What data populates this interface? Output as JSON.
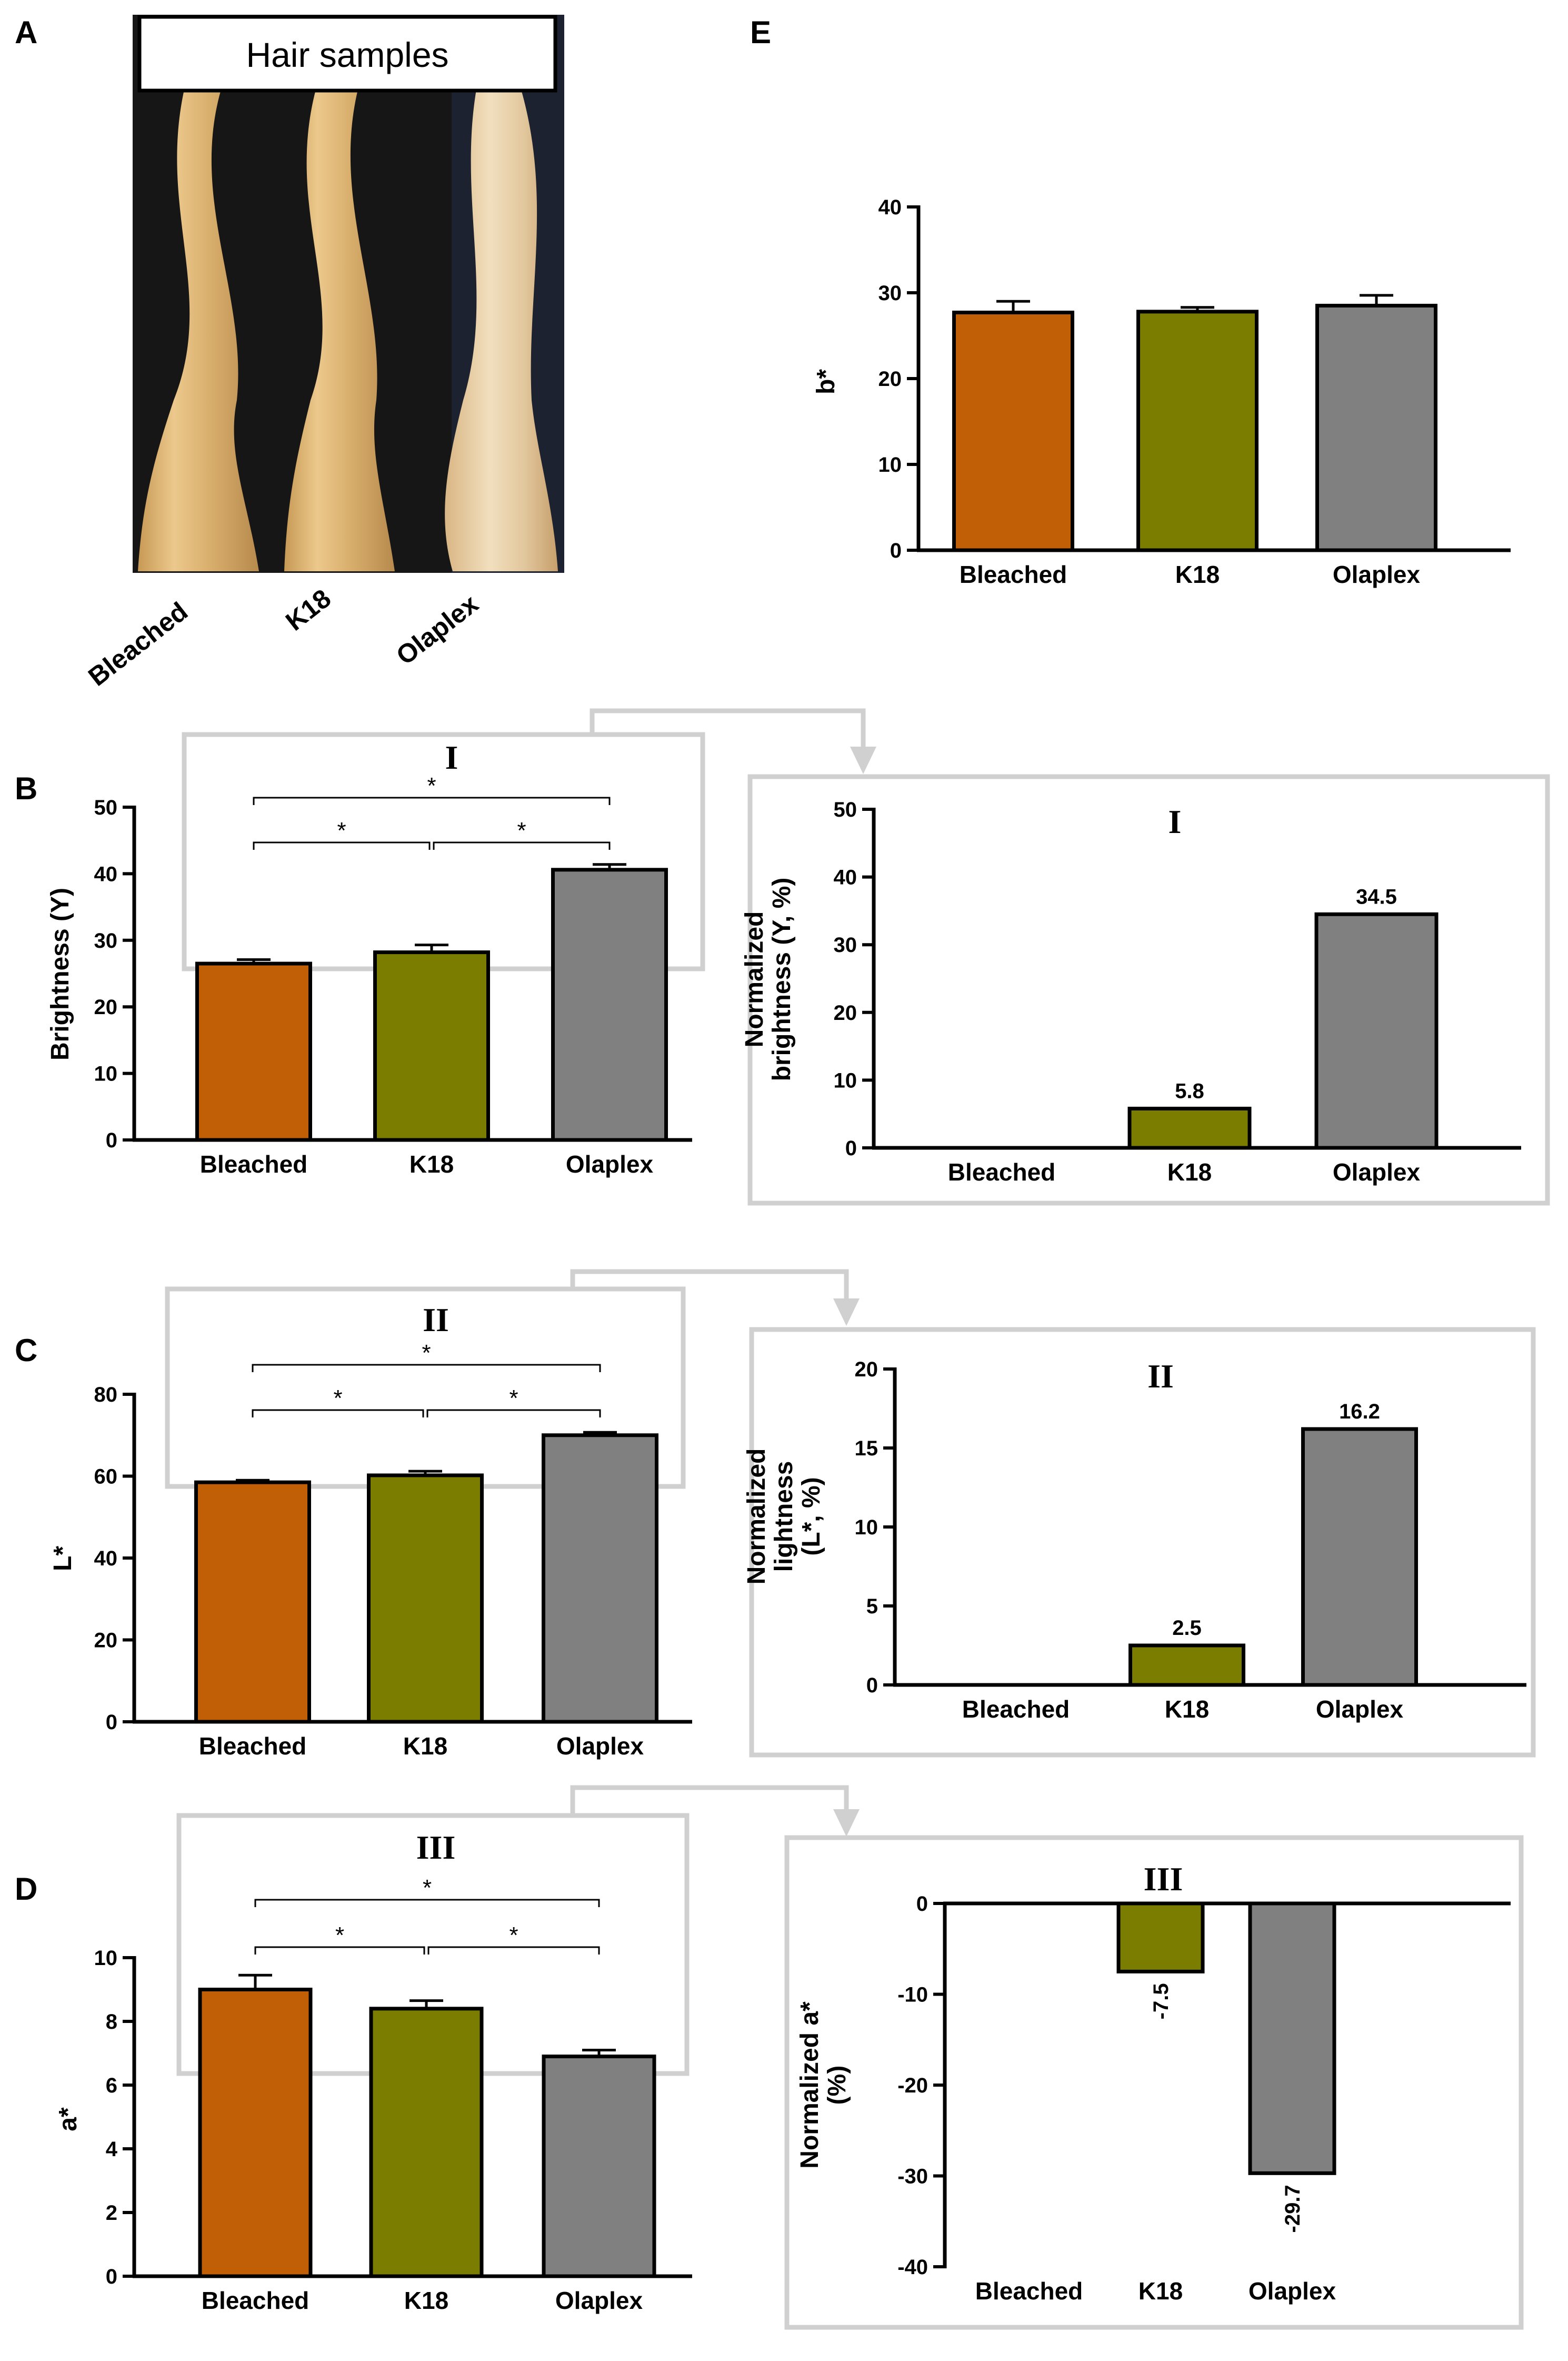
{
  "figure": {
    "panel_labels": [
      "A",
      "B",
      "C",
      "D",
      "E"
    ],
    "photo": {
      "title": "Hair samples",
      "samples": [
        "Bleached",
        "K18",
        "Olaplex"
      ]
    },
    "colors": {
      "Bleached": "#c05f05",
      "K18": "#7b7d00",
      "Olaplex": "#808080",
      "frame": "#d0d0d0"
    }
  },
  "chart_data": [
    {
      "id": "B",
      "type": "bar",
      "categories": [
        "Bleached",
        "K18",
        "Olaplex"
      ],
      "values": [
        26.5,
        28.2,
        40.6
      ],
      "errors": [
        0.6,
        1.1,
        0.8
      ],
      "ylabel": "Brightness (Y)",
      "ylim": [
        0,
        50
      ],
      "yticks": [
        0,
        10,
        20,
        30,
        40,
        50
      ],
      "significance": [
        "*",
        "*",
        "*"
      ],
      "inset_label": "I"
    },
    {
      "id": "B-normalized",
      "type": "bar",
      "categories": [
        "Bleached",
        "K18",
        "Olaplex"
      ],
      "values": [
        0,
        5.8,
        34.5
      ],
      "data_labels": [
        "",
        "5.8",
        "34.5"
      ],
      "ylabel": [
        "Normalized",
        "brightness (Y, %)"
      ],
      "ylim": [
        0,
        50
      ],
      "yticks": [
        0,
        10,
        20,
        30,
        40,
        50
      ],
      "title": "I"
    },
    {
      "id": "C",
      "type": "bar",
      "categories": [
        "Bleached",
        "K18",
        "Olaplex"
      ],
      "values": [
        58.5,
        60.2,
        70.0
      ],
      "errors": [
        0.5,
        1.0,
        0.7
      ],
      "ylabel": "L*",
      "ylim": [
        0,
        80
      ],
      "yticks": [
        0,
        20,
        40,
        60,
        80
      ],
      "significance": [
        "*",
        "*",
        "*"
      ],
      "inset_label": "II"
    },
    {
      "id": "C-normalized",
      "type": "bar",
      "categories": [
        "Bleached",
        "K18",
        "Olaplex"
      ],
      "values": [
        0,
        2.5,
        16.2
      ],
      "data_labels": [
        "",
        "2.5",
        "16.2"
      ],
      "ylabel": [
        "Normalized",
        "lightness",
        "(L*, %)"
      ],
      "ylim": [
        0,
        20
      ],
      "yticks": [
        0,
        5,
        10,
        15,
        20
      ],
      "title": "II"
    },
    {
      "id": "D",
      "type": "bar",
      "categories": [
        "Bleached",
        "K18",
        "Olaplex"
      ],
      "values": [
        9.0,
        8.4,
        6.9
      ],
      "errors": [
        0.45,
        0.25,
        0.2
      ],
      "ylabel": "a*",
      "ylim": [
        0,
        10
      ],
      "yticks": [
        0,
        2,
        4,
        6,
        8,
        10
      ],
      "significance": [
        "*",
        "*",
        "*"
      ],
      "inset_label": "III"
    },
    {
      "id": "D-normalized",
      "type": "bar",
      "categories": [
        "Bleached",
        "K18",
        "Olaplex"
      ],
      "values": [
        0,
        -7.5,
        -29.7
      ],
      "data_labels": [
        "",
        "-7.5",
        "-29.7"
      ],
      "ylabel": [
        "Normalized a*",
        "(%)"
      ],
      "ylim": [
        -40,
        0
      ],
      "yticks": [
        0,
        -10,
        -20,
        -30,
        -40
      ],
      "title": "III"
    },
    {
      "id": "E",
      "type": "bar",
      "categories": [
        "Bleached",
        "K18",
        "Olaplex"
      ],
      "values": [
        27.7,
        27.8,
        28.5
      ],
      "errors": [
        1.3,
        0.5,
        1.2
      ],
      "ylabel": "b*",
      "ylim": [
        0,
        40
      ],
      "yticks": [
        0,
        10,
        20,
        30,
        40
      ]
    }
  ]
}
